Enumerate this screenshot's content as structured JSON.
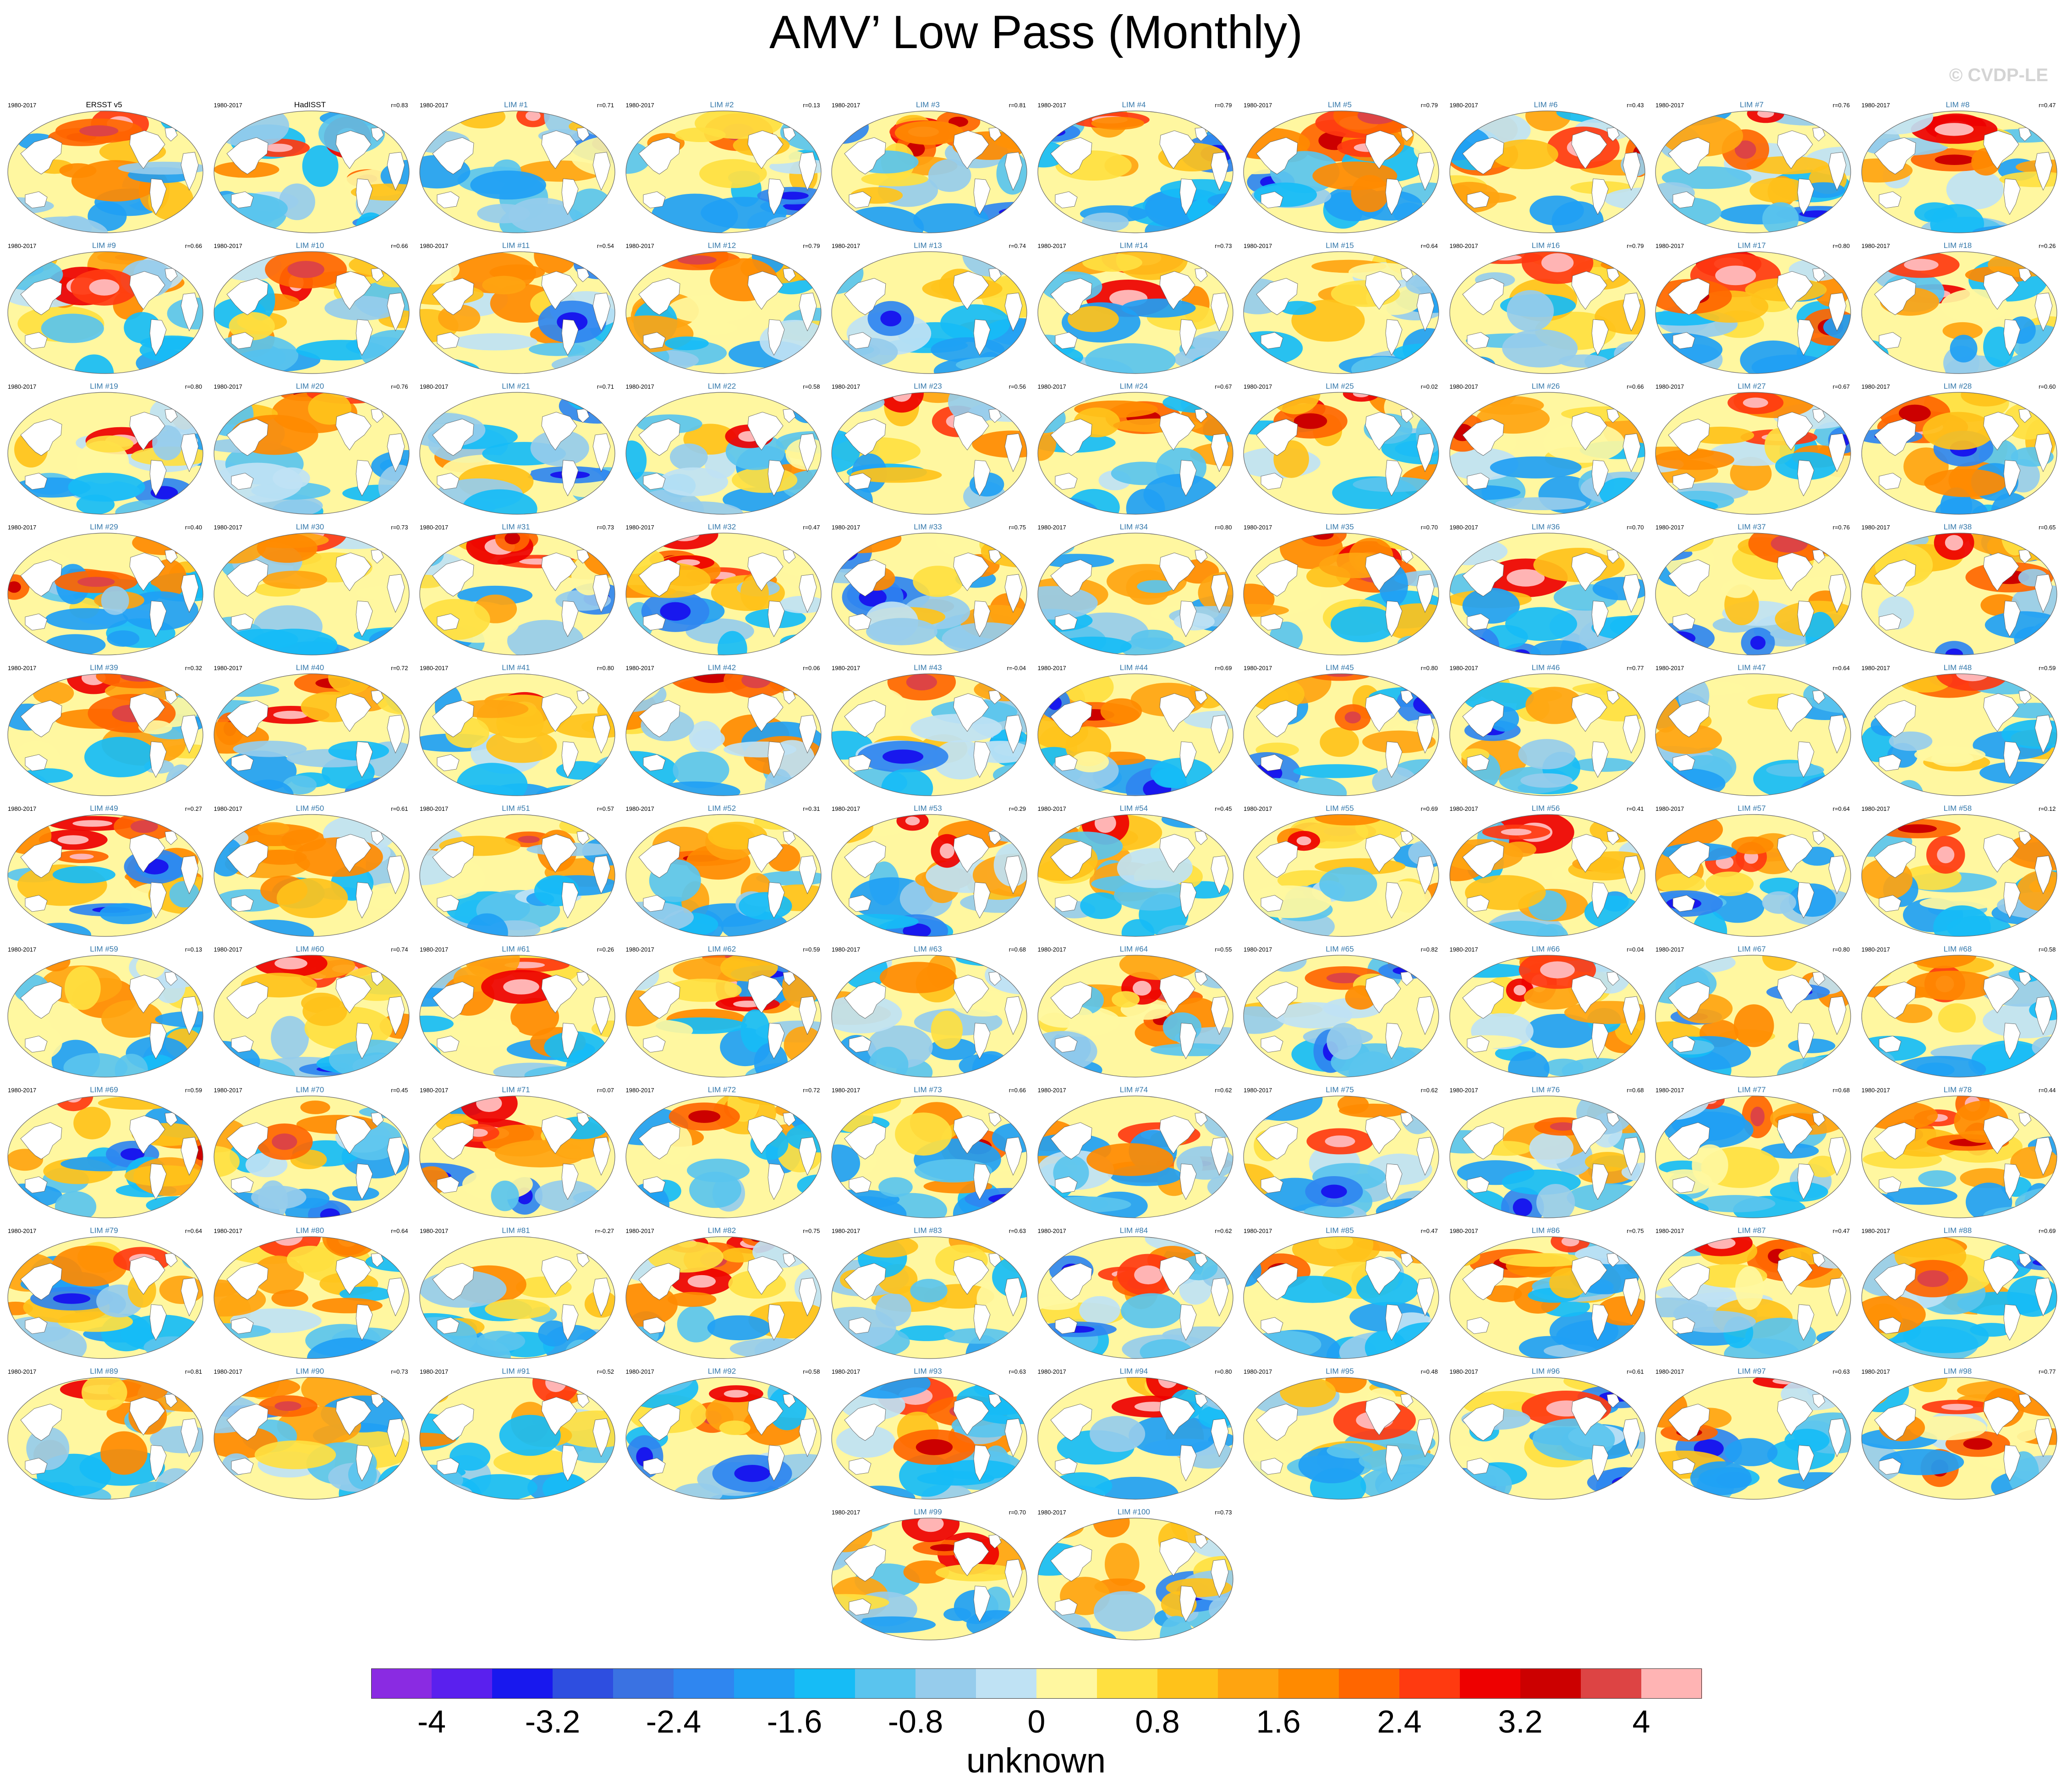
{
  "title": "AMV’ Low Pass (Monthly)",
  "credit": "© CVDP-LE",
  "chart_data": {
    "type": "heatmap",
    "title": "AMV’ Low Pass (Monthly)",
    "period": "1980-2017",
    "colorbar": {
      "label": "unknown",
      "ticks": [
        "-4",
        "-3.2",
        "-2.4",
        "-1.6",
        "-0.8",
        "0",
        "0.8",
        "1.6",
        "2.4",
        "3.2",
        "4"
      ],
      "range": [
        -4.4,
        4.4
      ],
      "step": 0.4,
      "colors": [
        "#8a2be2",
        "#5a20ee",
        "#1818ee",
        "#2e4ee0",
        "#3a72e2",
        "#2f86f0",
        "#20a0f4",
        "#16bcf6",
        "#5ac4ee",
        "#96ccec",
        "#bfe2f4",
        "#fff7a0",
        "#ffe040",
        "#ffc21a",
        "#ffa410",
        "#ff8a00",
        "#ff6600",
        "#ff3a10",
        "#ee0000",
        "#cc0000",
        "#dd4444",
        "#ffb4b4"
      ]
    },
    "panels": [
      {
        "title": "ERSST v5",
        "r": ""
      },
      {
        "title": "HadISST",
        "r": "r=0.83"
      },
      {
        "title": "LIM #1",
        "r": "r=0.71"
      },
      {
        "title": "LIM #2",
        "r": "r=0.13"
      },
      {
        "title": "LIM #3",
        "r": "r=0.81"
      },
      {
        "title": "LIM #4",
        "r": "r=0.79"
      },
      {
        "title": "LIM #5",
        "r": "r=0.79"
      },
      {
        "title": "LIM #6",
        "r": "r=0.43"
      },
      {
        "title": "LIM #7",
        "r": "r=0.76"
      },
      {
        "title": "LIM #8",
        "r": "r=0.47"
      },
      {
        "title": "LIM #9",
        "r": "r=0.66"
      },
      {
        "title": "LIM #10",
        "r": "r=0.66"
      },
      {
        "title": "LIM #11",
        "r": "r=0.54"
      },
      {
        "title": "LIM #12",
        "r": "r=0.79"
      },
      {
        "title": "LIM #13",
        "r": "r=0.74"
      },
      {
        "title": "LIM #14",
        "r": "r=0.73"
      },
      {
        "title": "LIM #15",
        "r": "r=0.64"
      },
      {
        "title": "LIM #16",
        "r": "r=0.79"
      },
      {
        "title": "LIM #17",
        "r": "r=0.80"
      },
      {
        "title": "LIM #18",
        "r": "r=0.26"
      },
      {
        "title": "LIM #19",
        "r": "r=0.80"
      },
      {
        "title": "LIM #20",
        "r": "r=0.76"
      },
      {
        "title": "LIM #21",
        "r": "r=0.71"
      },
      {
        "title": "LIM #22",
        "r": "r=0.58"
      },
      {
        "title": "LIM #23",
        "r": "r=0.56"
      },
      {
        "title": "LIM #24",
        "r": "r=0.67"
      },
      {
        "title": "LIM #25",
        "r": "r=0.02"
      },
      {
        "title": "LIM #26",
        "r": "r=0.66"
      },
      {
        "title": "LIM #27",
        "r": "r=0.67"
      },
      {
        "title": "LIM #28",
        "r": "r=0.60"
      },
      {
        "title": "LIM #29",
        "r": "r=0.40"
      },
      {
        "title": "LIM #30",
        "r": "r=0.73"
      },
      {
        "title": "LIM #31",
        "r": "r=0.73"
      },
      {
        "title": "LIM #32",
        "r": "r=0.47"
      },
      {
        "title": "LIM #33",
        "r": "r=0.75"
      },
      {
        "title": "LIM #34",
        "r": "r=0.80"
      },
      {
        "title": "LIM #35",
        "r": "r=0.70"
      },
      {
        "title": "LIM #36",
        "r": "r=0.70"
      },
      {
        "title": "LIM #37",
        "r": "r=0.76"
      },
      {
        "title": "LIM #38",
        "r": "r=0.65"
      },
      {
        "title": "LIM #39",
        "r": "r=0.32"
      },
      {
        "title": "LIM #40",
        "r": "r=0.72"
      },
      {
        "title": "LIM #41",
        "r": "r=0.80"
      },
      {
        "title": "LIM #42",
        "r": "r=0.06"
      },
      {
        "title": "LIM #43",
        "r": "r=-0.04"
      },
      {
        "title": "LIM #44",
        "r": "r=0.69"
      },
      {
        "title": "LIM #45",
        "r": "r=0.80"
      },
      {
        "title": "LIM #46",
        "r": "r=0.77"
      },
      {
        "title": "LIM #47",
        "r": "r=0.64"
      },
      {
        "title": "LIM #48",
        "r": "r=0.59"
      },
      {
        "title": "LIM #49",
        "r": "r=0.27"
      },
      {
        "title": "LIM #50",
        "r": "r=0.61"
      },
      {
        "title": "LIM #51",
        "r": "r=0.57"
      },
      {
        "title": "LIM #52",
        "r": "r=0.31"
      },
      {
        "title": "LIM #53",
        "r": "r=0.29"
      },
      {
        "title": "LIM #54",
        "r": "r=0.45"
      },
      {
        "title": "LIM #55",
        "r": "r=0.69"
      },
      {
        "title": "LIM #56",
        "r": "r=0.41"
      },
      {
        "title": "LIM #57",
        "r": "r=0.64"
      },
      {
        "title": "LIM #58",
        "r": "r=0.12"
      },
      {
        "title": "LIM #59",
        "r": "r=0.13"
      },
      {
        "title": "LIM #60",
        "r": "r=0.74"
      },
      {
        "title": "LIM #61",
        "r": "r=0.26"
      },
      {
        "title": "LIM #62",
        "r": "r=0.59"
      },
      {
        "title": "LIM #63",
        "r": "r=0.68"
      },
      {
        "title": "LIM #64",
        "r": "r=0.55"
      },
      {
        "title": "LIM #65",
        "r": "r=0.82"
      },
      {
        "title": "LIM #66",
        "r": "r=0.04"
      },
      {
        "title": "LIM #67",
        "r": "r=0.80"
      },
      {
        "title": "LIM #68",
        "r": "r=0.58"
      },
      {
        "title": "LIM #69",
        "r": "r=0.59"
      },
      {
        "title": "LIM #70",
        "r": "r=0.45"
      },
      {
        "title": "LIM #71",
        "r": "r=0.07"
      },
      {
        "title": "LIM #72",
        "r": "r=0.72"
      },
      {
        "title": "LIM #73",
        "r": "r=0.66"
      },
      {
        "title": "LIM #74",
        "r": "r=0.62"
      },
      {
        "title": "LIM #75",
        "r": "r=0.62"
      },
      {
        "title": "LIM #76",
        "r": "r=0.68"
      },
      {
        "title": "LIM #77",
        "r": "r=0.68"
      },
      {
        "title": "LIM #78",
        "r": "r=0.44"
      },
      {
        "title": "LIM #79",
        "r": "r=0.64"
      },
      {
        "title": "LIM #80",
        "r": "r=0.64"
      },
      {
        "title": "LIM #81",
        "r": "r=-0.27"
      },
      {
        "title": "LIM #82",
        "r": "r=0.75"
      },
      {
        "title": "LIM #83",
        "r": "r=0.63"
      },
      {
        "title": "LIM #84",
        "r": "r=0.62"
      },
      {
        "title": "LIM #85",
        "r": "r=0.47"
      },
      {
        "title": "LIM #86",
        "r": "r=0.75"
      },
      {
        "title": "LIM #87",
        "r": "r=0.47"
      },
      {
        "title": "LIM #88",
        "r": "r=0.69"
      },
      {
        "title": "LIM #89",
        "r": "r=0.81"
      },
      {
        "title": "LIM #90",
        "r": "r=0.73"
      },
      {
        "title": "LIM #91",
        "r": "r=0.52"
      },
      {
        "title": "LIM #92",
        "r": "r=0.58"
      },
      {
        "title": "LIM #93",
        "r": "r=0.63"
      },
      {
        "title": "LIM #94",
        "r": "r=0.80"
      },
      {
        "title": "LIM #95",
        "r": "r=0.48"
      },
      {
        "title": "LIM #96",
        "r": "r=0.61"
      },
      {
        "title": "LIM #97",
        "r": "r=0.63"
      },
      {
        "title": "LIM #98",
        "r": "r=0.77"
      },
      {
        "title": "LIM #99",
        "r": "r=0.70"
      },
      {
        "title": "LIM #100",
        "r": "r=0.73"
      }
    ]
  }
}
